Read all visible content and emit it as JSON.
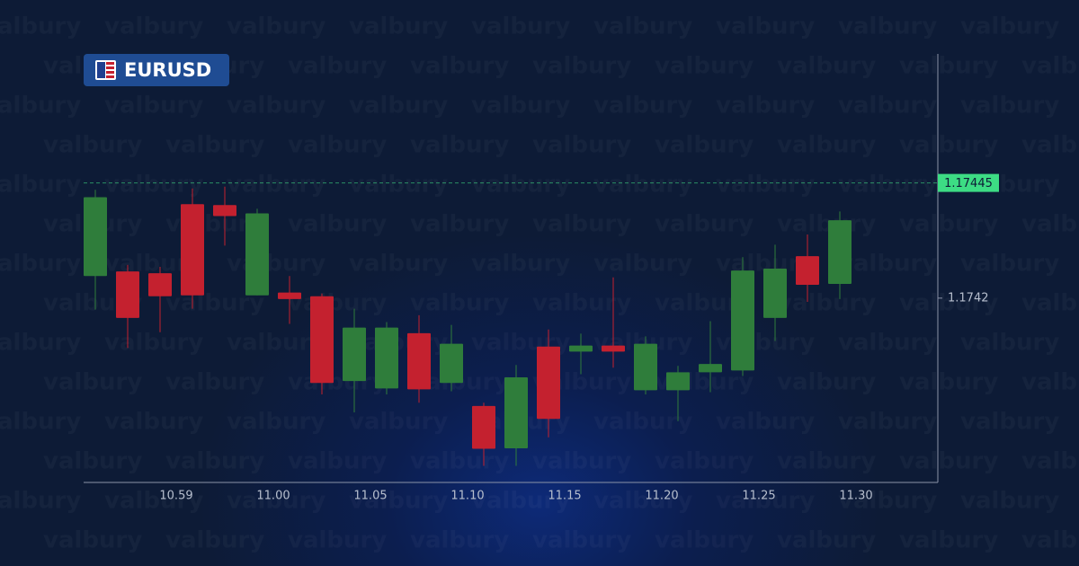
{
  "chart_data": {
    "type": "candlestick",
    "symbol": "EURUSD",
    "watermark": "valbury",
    "xtick_labels": [
      "10.59",
      "11.00",
      "11.05",
      "11.10",
      "11.15",
      "11.20",
      "11.25",
      "11.30"
    ],
    "open": [
      1.174248,
      1.174258,
      1.174254,
      1.174404,
      1.174402,
      1.174206,
      1.174212,
      1.174204,
      1.17402,
      1.174004,
      1.174124,
      1.174016,
      1.173966,
      1.173874,
      1.174095,
      1.174084,
      1.174097,
      1.174,
      1.174,
      1.174039,
      1.174043,
      1.174157,
      1.174291,
      1.174231
    ],
    "high": [
      1.174435,
      1.174272,
      1.174268,
      1.174438,
      1.174442,
      1.174394,
      1.174248,
      1.17421,
      1.174177,
      1.174148,
      1.174163,
      1.174142,
      1.173973,
      1.174055,
      1.174132,
      1.174123,
      1.174245,
      1.174117,
      1.174053,
      1.17415,
      1.174289,
      1.174316,
      1.174338,
      1.174388
    ],
    "low": [
      1.174175,
      1.174092,
      1.174126,
      1.174177,
      1.174314,
      1.174206,
      1.174144,
      1.173991,
      1.173952,
      1.173991,
      1.173973,
      1.173998,
      1.173836,
      1.173836,
      1.173898,
      1.174035,
      1.174049,
      1.173991,
      1.173933,
      1.173996,
      1.174031,
      1.174107,
      1.174192,
      1.174198
    ],
    "close": [
      1.174419,
      1.174157,
      1.174204,
      1.174206,
      1.174378,
      1.174384,
      1.174198,
      1.174016,
      1.174136,
      1.174136,
      1.174002,
      1.174101,
      1.173873,
      1.174028,
      1.173938,
      1.174097,
      1.174084,
      1.174101,
      1.174039,
      1.174057,
      1.17426,
      1.174264,
      1.174229,
      1.174369
    ],
    "up_color": "#2f7d3b",
    "down_color": "#c4212f",
    "current_price": 1.17445,
    "current_price_color": "#3ddc84",
    "ylim": [
      1.1738,
      1.17473
    ],
    "yticks": [
      1.17445,
      1.1742
    ]
  }
}
